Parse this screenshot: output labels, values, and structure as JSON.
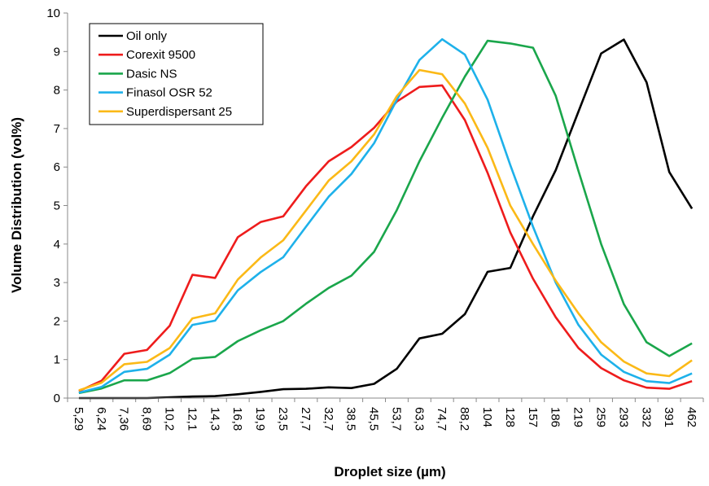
{
  "chart_data": {
    "type": "line",
    "title": "",
    "xlabel": "Droplet size (µm)",
    "ylabel": "Volume Distribution (vol%)",
    "ylim": [
      0,
      10
    ],
    "yticks": [
      "0",
      "1",
      "2",
      "3",
      "4",
      "5",
      "6",
      "7",
      "8",
      "9",
      "10"
    ],
    "grid": false,
    "legend_position": "top-left",
    "categories": [
      "5,29",
      "6,24",
      "7,36",
      "8,69",
      "10,2",
      "12,1",
      "14,3",
      "16,8",
      "19,9",
      "23,5",
      "27,7",
      "32,7",
      "38,5",
      "45,5",
      "53,7",
      "63,3",
      "74,7",
      "88,2",
      "104",
      "128",
      "157",
      "186",
      "219",
      "259",
      "293",
      "332",
      "391",
      "462"
    ],
    "series": [
      {
        "name": "Oil only",
        "color": "#000000",
        "values": [
          0.0,
          0.0,
          0.0,
          0.0,
          0.02,
          0.04,
          0.05,
          0.1,
          0.16,
          0.23,
          0.24,
          0.28,
          0.26,
          0.37,
          0.76,
          1.55,
          1.67,
          2.18,
          3.28,
          3.38,
          4.72,
          5.92,
          7.44,
          8.95,
          9.31,
          8.2,
          5.87,
          4.92
        ]
      },
      {
        "name": "Corexit 9500",
        "color": "#ee1c1c",
        "values": [
          0.18,
          0.45,
          1.15,
          1.25,
          1.88,
          3.2,
          3.12,
          4.18,
          4.57,
          4.72,
          5.5,
          6.15,
          6.52,
          7.02,
          7.7,
          8.08,
          8.12,
          7.22,
          5.85,
          4.3,
          3.1,
          2.1,
          1.3,
          0.78,
          0.46,
          0.27,
          0.24,
          0.44
        ]
      },
      {
        "name": "Dasic NS",
        "color": "#1aa64b",
        "values": [
          0.13,
          0.25,
          0.46,
          0.46,
          0.65,
          1.02,
          1.07,
          1.48,
          1.76,
          2.0,
          2.45,
          2.86,
          3.18,
          3.8,
          4.88,
          6.15,
          7.28,
          8.35,
          9.28,
          9.21,
          9.1,
          7.85,
          5.9,
          4.0,
          2.44,
          1.45,
          1.09,
          1.42
        ]
      },
      {
        "name": "Finasol OSR 52",
        "color": "#1eb1ea",
        "values": [
          0.14,
          0.29,
          0.68,
          0.76,
          1.13,
          1.9,
          2.01,
          2.8,
          3.27,
          3.66,
          4.45,
          5.23,
          5.82,
          6.62,
          7.74,
          8.78,
          9.32,
          8.92,
          7.75,
          6.05,
          4.45,
          3.0,
          1.9,
          1.13,
          0.68,
          0.44,
          0.39,
          0.64
        ]
      },
      {
        "name": "Superdispersant 25",
        "color": "#fbb917",
        "values": [
          0.2,
          0.4,
          0.88,
          0.94,
          1.3,
          2.07,
          2.2,
          3.08,
          3.65,
          4.1,
          4.87,
          5.65,
          6.15,
          6.85,
          7.84,
          8.52,
          8.41,
          7.65,
          6.5,
          5.0,
          4.0,
          3.05,
          2.2,
          1.45,
          0.95,
          0.64,
          0.57,
          0.98
        ]
      }
    ]
  }
}
